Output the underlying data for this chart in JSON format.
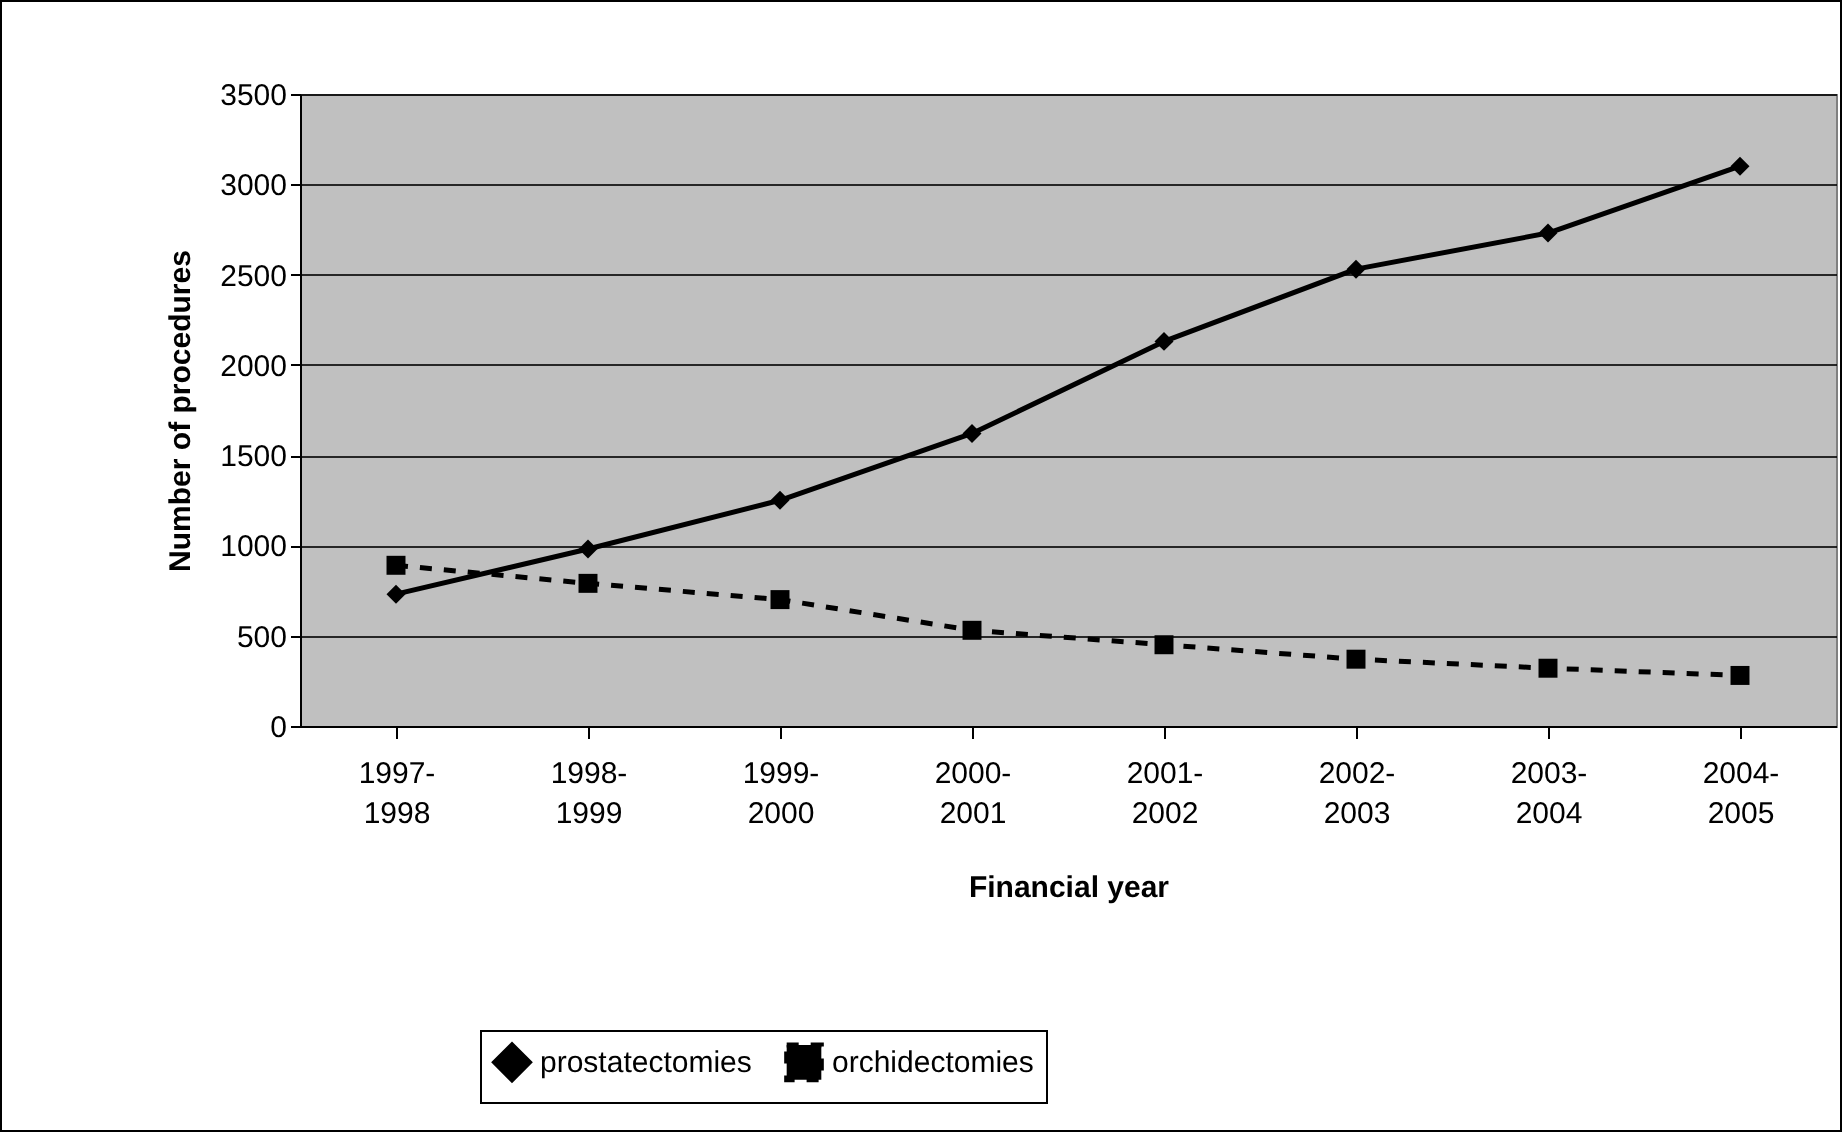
{
  "chart_data": {
    "type": "line",
    "xlabel": "Financial year",
    "ylabel": "Number of procedures",
    "categories": [
      "1997-1998",
      "1998-1999",
      "1999-2000",
      "2000-2001",
      "2001-2002",
      "2002-2003",
      "2003-2004",
      "2004-2005"
    ],
    "series": [
      {
        "name": "prostatectomies",
        "color": "#000000",
        "marker": "diamond",
        "line_style": "solid",
        "values": [
          730,
          980,
          1250,
          1620,
          2130,
          2530,
          2730,
          3100
        ]
      },
      {
        "name": "orchidectomies",
        "color": "#000000",
        "marker": "square",
        "line_style": "dashed",
        "values": [
          890,
          790,
          700,
          530,
          450,
          370,
          320,
          280
        ]
      }
    ],
    "ylim": [
      0,
      3500
    ],
    "yticks": [
      0,
      500,
      1000,
      1500,
      2000,
      2500,
      3000,
      3500
    ],
    "grid": "y",
    "legend": "bottom"
  }
}
